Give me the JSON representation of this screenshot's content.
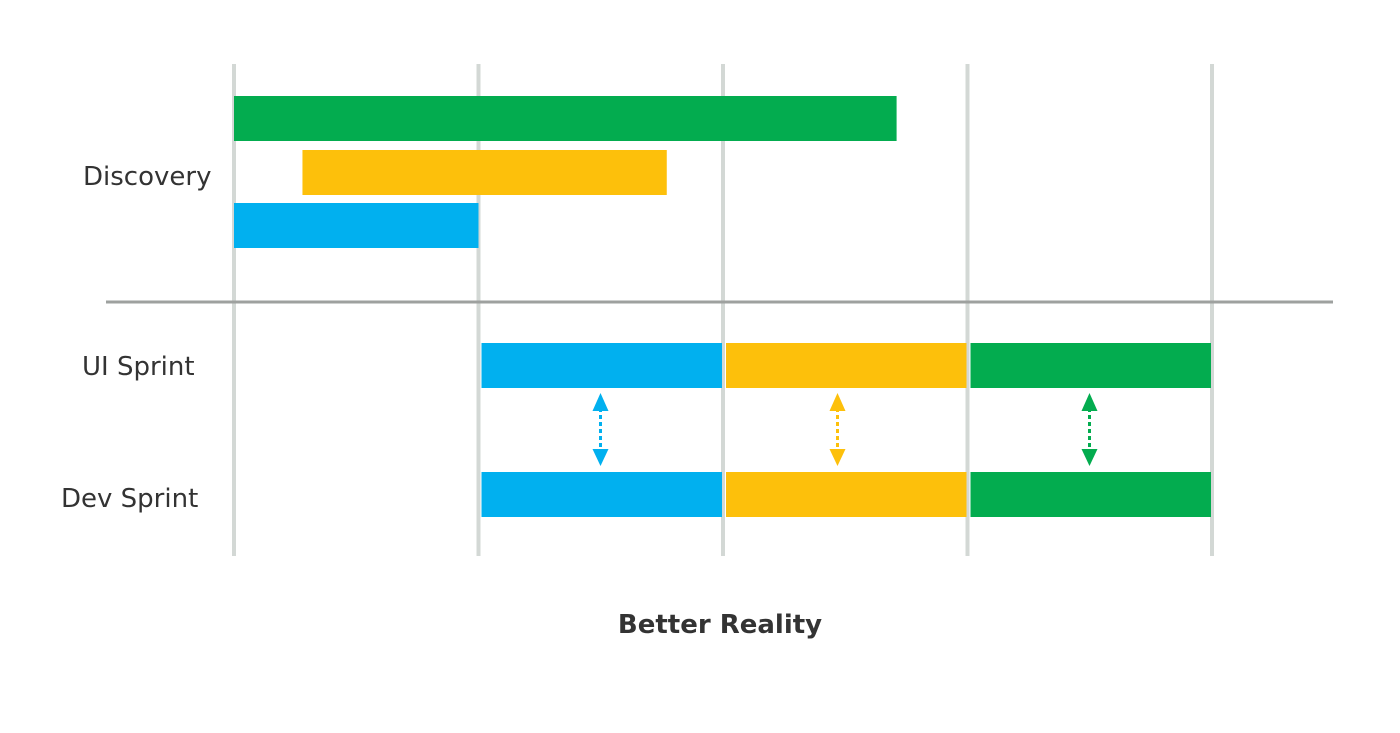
{
  "caption": "Better Reality",
  "colors": {
    "green": "#03ac4f",
    "yellow": "#fdc00b",
    "blue": "#01b0ef",
    "grid": "#d3d8d5",
    "divider": "#9ea19f"
  },
  "rows": {
    "discovery": {
      "label": "Discovery"
    },
    "ui_sprint": {
      "label": "UI Sprint"
    },
    "dev_sprint": {
      "label": "Dev Sprint"
    }
  },
  "discovery_bars": [
    {
      "color": "green",
      "start": 0,
      "end": 2.71
    },
    {
      "color": "yellow",
      "start": 0.28,
      "end": 1.77
    },
    {
      "color": "blue",
      "start": 0,
      "end": 1.0
    }
  ],
  "sprint_bars": [
    {
      "color": "blue",
      "start": 1,
      "end": 2
    },
    {
      "color": "yellow",
      "start": 2,
      "end": 3
    },
    {
      "color": "green",
      "start": 3,
      "end": 4
    }
  ],
  "sync_arrows": [
    {
      "color": "blue",
      "at": 1.5
    },
    {
      "color": "yellow",
      "at": 2.47
    },
    {
      "color": "green",
      "at": 3.5
    }
  ]
}
